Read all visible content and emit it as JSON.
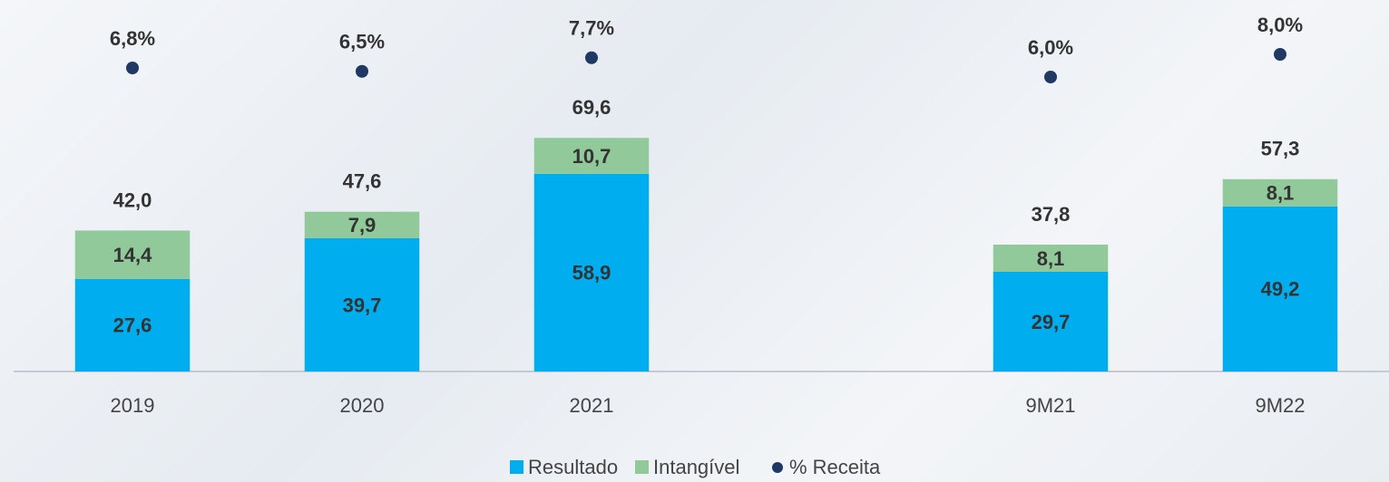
{
  "chart_data": {
    "type": "bar",
    "stacked": true,
    "categories": [
      "2019",
      "2020",
      "2021",
      null,
      "9M21",
      "9M22"
    ],
    "series": [
      {
        "name": "Resultado",
        "color": "#00aeef",
        "values": [
          27.6,
          39.7,
          58.9,
          null,
          29.7,
          49.2
        ],
        "value_labels": [
          "27,6",
          "39,7",
          "58,9",
          null,
          "29,7",
          "49,2"
        ]
      },
      {
        "name": "Intangível",
        "color": "#92c99b",
        "values": [
          14.4,
          7.9,
          10.7,
          null,
          8.1,
          8.1
        ],
        "value_labels": [
          "14,4",
          "7,9",
          "10,7",
          null,
          "8,1",
          "8,1"
        ]
      },
      {
        "name": "% Receita",
        "type": "scatter",
        "axis": "y2",
        "color": "#1f3864",
        "values": [
          6.8,
          6.5,
          7.7,
          null,
          6.0,
          8.0
        ],
        "value_labels": [
          "6,8%",
          "6,5%",
          "7,7%",
          null,
          "6,0%",
          "8,0%"
        ]
      }
    ],
    "totals": {
      "values": [
        42.0,
        47.6,
        69.6,
        null,
        37.8,
        57.3
      ],
      "value_labels": [
        "42,0",
        "47,6",
        "69,6",
        null,
        "37,8",
        "57,3"
      ]
    },
    "ylim": [
      0,
      108
    ],
    "y2lim": [
      -20,
      12
    ],
    "legend": "bottom"
  }
}
